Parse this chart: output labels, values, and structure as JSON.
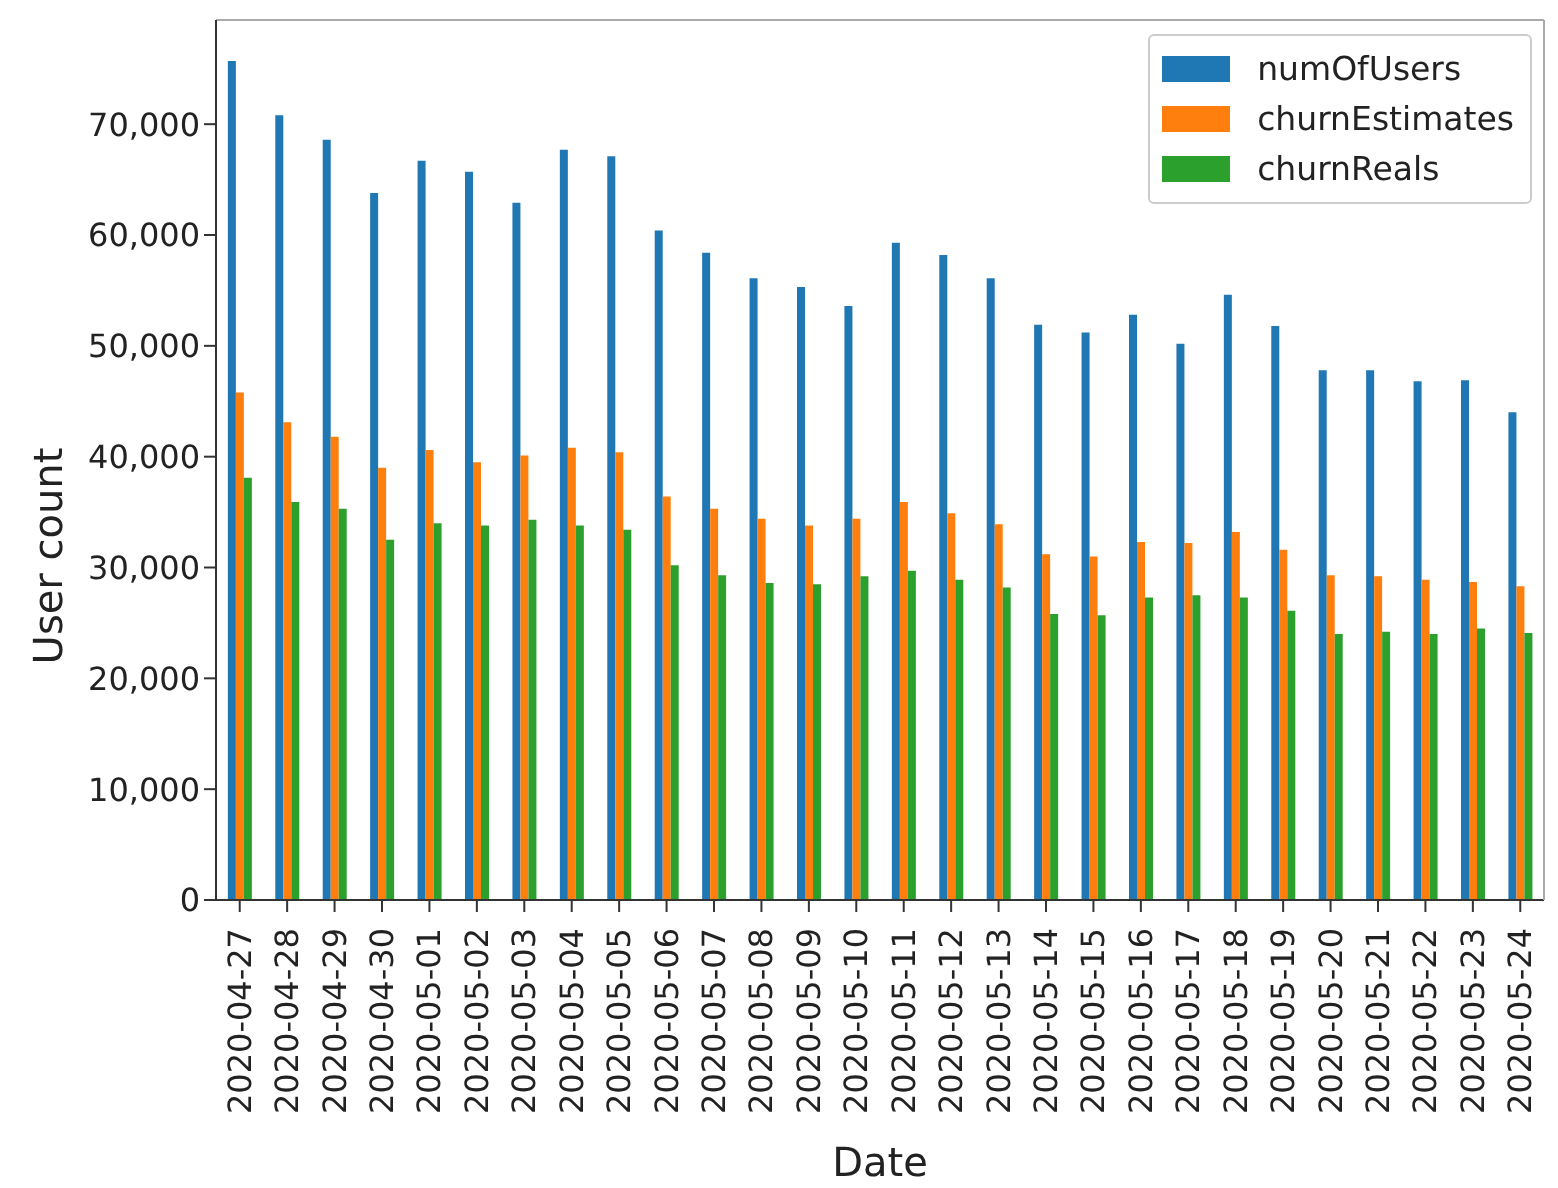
{
  "chart_data": {
    "type": "bar",
    "xlabel": "Date",
    "ylabel": "User count",
    "categories": [
      "2020-04-27",
      "2020-04-28",
      "2020-04-29",
      "2020-04-30",
      "2020-05-01",
      "2020-05-02",
      "2020-05-03",
      "2020-05-04",
      "2020-05-05",
      "2020-05-06",
      "2020-05-07",
      "2020-05-08",
      "2020-05-09",
      "2020-05-10",
      "2020-05-11",
      "2020-05-12",
      "2020-05-13",
      "2020-05-14",
      "2020-05-15",
      "2020-05-16",
      "2020-05-17",
      "2020-05-18",
      "2020-05-19",
      "2020-05-20",
      "2020-05-21",
      "2020-05-22",
      "2020-05-23",
      "2020-05-24"
    ],
    "series": [
      {
        "name": "numOfUsers",
        "color": "#1f77b4",
        "values": [
          75700,
          70800,
          68600,
          63800,
          66700,
          65700,
          62900,
          67700,
          67100,
          60400,
          58400,
          56100,
          55300,
          53600,
          59300,
          58200,
          56100,
          51900,
          51200,
          52800,
          50200,
          54600,
          51800,
          47800,
          47800,
          46800,
          46900,
          44000
        ]
      },
      {
        "name": "churnEstimates",
        "color": "#ff7f0e",
        "values": [
          45800,
          43100,
          41800,
          39000,
          40600,
          39500,
          40100,
          40800,
          40400,
          36400,
          35300,
          34400,
          33800,
          34400,
          35900,
          34900,
          33900,
          31200,
          31000,
          32300,
          32200,
          33200,
          31600,
          29300,
          29200,
          28900,
          28700,
          28300
        ]
      },
      {
        "name": "churnReals",
        "color": "#2ca02c",
        "values": [
          38100,
          35900,
          35300,
          32500,
          34000,
          33800,
          34300,
          33800,
          33400,
          30200,
          29300,
          28600,
          28500,
          29200,
          29700,
          28900,
          28200,
          25800,
          25700,
          27300,
          27500,
          27300,
          26100,
          24000,
          24200,
          24000,
          24500,
          24100
        ]
      }
    ],
    "ylim": [
      0,
      79400
    ],
    "yticks": [
      0,
      {
        "value": 10000,
        "label": "10,000"
      },
      {
        "value": 20000,
        "label": "20,000"
      },
      {
        "value": 30000,
        "label": "30,000"
      },
      {
        "value": 40000,
        "label": "40,000"
      },
      {
        "value": 50000,
        "label": "50,000"
      },
      {
        "value": 60000,
        "label": "60,000"
      },
      {
        "value": 70000,
        "label": "70,000"
      }
    ],
    "legend": "top right"
  }
}
